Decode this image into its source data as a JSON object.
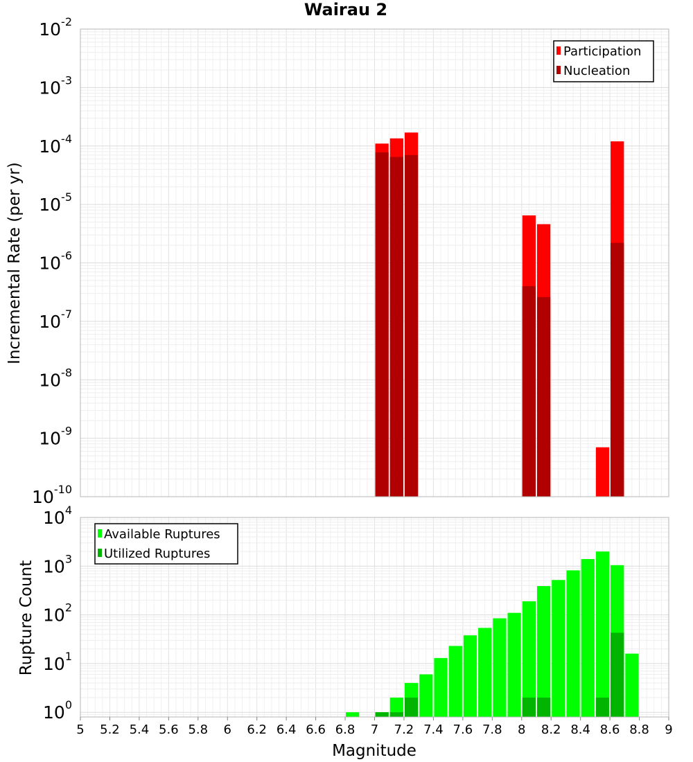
{
  "chart_data": [
    {
      "type": "bar",
      "title": "Wairau 2",
      "ylabel": "Incremental Rate (per yr)",
      "yscale": "log",
      "ylim": [
        1e-10,
        0.01
      ],
      "y_tick_exponents": [
        "-10",
        "-9",
        "-8",
        "-7",
        "-6",
        "-5",
        "-4",
        "-3",
        "-2"
      ],
      "xlim": [
        5,
        9
      ],
      "legend": {
        "position": "top-right",
        "entries": [
          "Participation",
          "Nucleation"
        ]
      },
      "grid": true,
      "series": [
        {
          "name": "Participation",
          "color": "#ff0000",
          "x": [
            7.05,
            7.15,
            7.25,
            8.05,
            8.15,
            8.55,
            8.65
          ],
          "values": [
            0.00011,
            0.000135,
            0.00017,
            6.5e-06,
            4.6e-06,
            7e-10,
            0.00012
          ]
        },
        {
          "name": "Nucleation",
          "color": "#b00000",
          "x": [
            7.05,
            7.15,
            7.25,
            8.05,
            8.15,
            8.65
          ],
          "values": [
            7.8e-05,
            6.5e-05,
            7e-05,
            4e-07,
            2.6e-07,
            2.2e-06
          ]
        }
      ]
    },
    {
      "type": "bar",
      "ylabel": "Rupture Count",
      "xlabel": "Magnitude",
      "yscale": "log",
      "ylim": [
        0.8,
        10000
      ],
      "y_tick_exponents": [
        "0",
        "1",
        "2",
        "3",
        "4"
      ],
      "xlim": [
        5,
        9
      ],
      "x_ticks": [
        "5",
        "5.2",
        "5.4",
        "5.6",
        "5.8",
        "6",
        "6.2",
        "6.4",
        "6.6",
        "6.8",
        "7",
        "7.2",
        "7.4",
        "7.6",
        "7.8",
        "8",
        "8.2",
        "8.4",
        "8.6",
        "8.8",
        "9"
      ],
      "legend": {
        "position": "top-left",
        "entries": [
          "Available Ruptures",
          "Utilized Ruptures"
        ]
      },
      "grid": true,
      "series": [
        {
          "name": "Available Ruptures",
          "color": "#00ff00",
          "x": [
            6.85,
            7.05,
            7.15,
            7.25,
            7.35,
            7.45,
            7.55,
            7.65,
            7.75,
            7.85,
            7.95,
            8.05,
            8.15,
            8.25,
            8.35,
            8.45,
            8.55,
            8.65,
            8.75
          ],
          "values": [
            1,
            1,
            2,
            4,
            6,
            13,
            23,
            38,
            54,
            85,
            110,
            190,
            390,
            520,
            820,
            1400,
            2000,
            1050,
            16
          ]
        },
        {
          "name": "Utilized Ruptures",
          "color": "#00b400",
          "x": [
            7.05,
            7.15,
            7.25,
            8.05,
            8.15,
            8.55,
            8.65
          ],
          "values": [
            1,
            1,
            2,
            2,
            2,
            2,
            43
          ]
        }
      ]
    }
  ]
}
